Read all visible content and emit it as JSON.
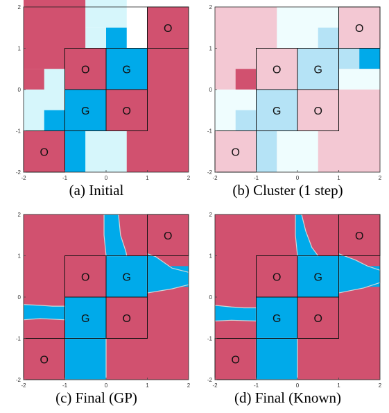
{
  "colors": {
    "obstacle": "#d1516f",
    "goal": "#00aaea",
    "light_blue": "#d6f6fb",
    "pale_pink": "#f3c8d3",
    "pale_blue": "#b5e3f6",
    "pale_cyan": "#effdfe",
    "grid_line": "#111111"
  },
  "chart_data": [
    {
      "type": "heatmap",
      "caption": "(a) Initial",
      "xlim": [
        -2,
        2
      ],
      "ylim": [
        -2,
        2
      ],
      "xticks": [
        "-2",
        "-1",
        "0",
        "1",
        "2"
      ],
      "yticks": [
        "-2",
        "-1",
        "0",
        "1",
        "2"
      ],
      "obstacles": [
        [
          -1.5,
          -1.5
        ],
        [
          -0.5,
          0.5
        ],
        [
          0.5,
          -0.5
        ],
        [
          1.5,
          1.5
        ]
      ],
      "goals": [
        [
          0.5,
          0.5
        ],
        [
          -0.5,
          -0.5
        ]
      ],
      "obstacle_label": "O",
      "goal_label": "G",
      "cells": [
        [
          -2,
          0.5,
          1.5,
          2,
          "obstacle"
        ],
        [
          -0.5,
          1.5,
          1,
          2,
          "light_blue"
        ],
        [
          -2,
          0.5,
          1.5,
          0.5,
          "obstacle"
        ],
        [
          -0.5,
          1.0,
          0.5,
          0.5,
          "light_blue"
        ],
        [
          0,
          1.0,
          0.5,
          0.5,
          "goal"
        ],
        [
          1.0,
          0.5,
          0.5,
          0.5,
          "goal"
        ],
        [
          1.5,
          0.5,
          0.5,
          1.0,
          "light_blue"
        ],
        [
          -2,
          0,
          1,
          0.5,
          "obstacle"
        ],
        [
          -1.5,
          0,
          0.5,
          0.5,
          "light_blue"
        ],
        [
          -1,
          0,
          3,
          1,
          "obstacle"
        ],
        [
          0,
          0,
          1,
          1,
          "goal"
        ],
        [
          -2,
          -1,
          1,
          1,
          "light_blue"
        ],
        [
          -1.5,
          -1,
          0.5,
          0.5,
          "goal"
        ],
        [
          -1,
          -1,
          1,
          1,
          "goal"
        ],
        [
          0,
          -1,
          2,
          1,
          "obstacle"
        ],
        [
          -2,
          -2,
          1,
          1,
          "obstacle"
        ],
        [
          -1,
          -2,
          0.5,
          1,
          "goal"
        ],
        [
          -0.5,
          -2,
          1,
          1,
          "light_blue"
        ],
        [
          0.5,
          -2,
          1.5,
          1,
          "obstacle"
        ],
        [
          1,
          1,
          1,
          1,
          "obstacle"
        ]
      ]
    },
    {
      "type": "heatmap",
      "caption": "(b) Cluster (1 step)",
      "xlim": [
        -2,
        2
      ],
      "ylim": [
        -2,
        2
      ],
      "xticks": [
        "-2",
        "-1",
        "0",
        "1",
        "2"
      ],
      "yticks": [
        "-2",
        "-1",
        "0",
        "1",
        "2"
      ],
      "obstacles": [
        [
          -1.5,
          -1.5
        ],
        [
          -0.5,
          0.5
        ],
        [
          0.5,
          -0.5
        ],
        [
          1.5,
          1.5
        ]
      ],
      "goals": [
        [
          0.5,
          0.5
        ],
        [
          -0.5,
          -0.5
        ]
      ],
      "obstacle_label": "O",
      "goal_label": "G",
      "cells": [
        [
          -2,
          -2,
          4,
          4,
          "pale_pink"
        ],
        [
          -0.5,
          1.0,
          1.5,
          1.0,
          "pale_cyan"
        ],
        [
          0.5,
          1.0,
          0.5,
          0.5,
          "pale_blue"
        ],
        [
          1.0,
          0.5,
          0.5,
          0.5,
          "pale_blue"
        ],
        [
          1.5,
          0.5,
          0.5,
          0.5,
          "goal"
        ],
        [
          1.0,
          0,
          1.0,
          0.5,
          "pale_cyan"
        ],
        [
          -1.5,
          0,
          0.5,
          0.5,
          "obstacle"
        ],
        [
          0,
          0,
          1,
          1,
          "pale_blue"
        ],
        [
          -2,
          -1,
          1,
          1,
          "pale_cyan"
        ],
        [
          -1.5,
          -1,
          0.5,
          0.5,
          "pale_blue"
        ],
        [
          -1,
          -1,
          1,
          1,
          "pale_blue"
        ],
        [
          -1,
          -2,
          0.5,
          1,
          "pale_blue"
        ],
        [
          -0.5,
          -2,
          1,
          1,
          "pale_cyan"
        ],
        [
          1,
          1,
          1,
          1,
          "pale_pink"
        ]
      ]
    },
    {
      "type": "heatmap",
      "caption": "(c) Final (GP)",
      "xlim": [
        -2,
        2
      ],
      "ylim": [
        -2,
        2
      ],
      "xticks": [
        "-2",
        "-1",
        "0",
        "1",
        "2"
      ],
      "yticks": [
        "-2",
        "-1",
        "0",
        "1",
        "2"
      ],
      "obstacles": [
        [
          -1.5,
          -1.5
        ],
        [
          -0.5,
          0.5
        ],
        [
          0.5,
          -0.5
        ],
        [
          1.5,
          1.5
        ]
      ],
      "goals": [
        [
          0.5,
          0.5
        ],
        [
          -0.5,
          -0.5
        ]
      ],
      "obstacle_label": "O",
      "goal_label": "G",
      "cells": [
        [
          -2,
          -2,
          4,
          4,
          "obstacle"
        ],
        [
          0,
          0,
          1,
          1,
          "goal"
        ],
        [
          -1,
          -1,
          1,
          1,
          "goal"
        ],
        [
          -1,
          -2,
          1,
          1,
          "goal"
        ],
        [
          -2,
          -0.5,
          1,
          0.25,
          "goal"
        ],
        [
          1,
          0.25,
          1,
          0.5,
          "goal"
        ]
      ],
      "regions": [
        [
          [
            -0.05,
            2
          ],
          [
            0.3,
            2
          ],
          [
            0.35,
            1.5
          ],
          [
            0.48,
            1.1
          ],
          [
            0.5,
            1
          ],
          [
            0,
            1
          ],
          [
            -0.05,
            1.5
          ]
        ],
        [
          [
            1,
            1.05
          ],
          [
            1.2,
            0.98
          ],
          [
            1.6,
            0.7
          ],
          [
            2,
            0.6
          ],
          [
            2,
            0.3
          ],
          [
            1.6,
            0.2
          ],
          [
            1,
            0.1
          ]
        ],
        [
          [
            -2,
            -0.18
          ],
          [
            -1.6,
            -0.2
          ],
          [
            -1.3,
            -0.22
          ],
          [
            -1,
            -0.22
          ],
          [
            -1,
            -0.55
          ],
          [
            -1.6,
            -0.52
          ],
          [
            -2,
            -0.55
          ]
        ],
        [
          [
            -1,
            -1
          ],
          [
            0,
            -1
          ],
          [
            0,
            -2
          ],
          [
            -1,
            -2
          ]
        ]
      ]
    },
    {
      "type": "heatmap",
      "caption": "(d) Final (Known)",
      "xlim": [
        -2,
        2
      ],
      "ylim": [
        -2,
        2
      ],
      "xticks": [
        "-2",
        "-1",
        "0",
        "1",
        "2"
      ],
      "yticks": [
        "-2",
        "-1",
        "0",
        "1",
        "2"
      ],
      "obstacles": [
        [
          -1.5,
          -1.5
        ],
        [
          -0.5,
          0.5
        ],
        [
          0.5,
          -0.5
        ],
        [
          1.5,
          1.5
        ]
      ],
      "goals": [
        [
          0.5,
          0.5
        ],
        [
          -0.5,
          -0.5
        ]
      ],
      "obstacle_label": "O",
      "goal_label": "G",
      "cells": [
        [
          -2,
          -2,
          4,
          4,
          "obstacle"
        ],
        [
          0,
          0,
          1,
          1,
          "goal"
        ],
        [
          -1,
          -1,
          1,
          1,
          "goal"
        ],
        [
          -1,
          -2,
          1,
          1,
          "goal"
        ],
        [
          -2,
          -0.5,
          1,
          0.25,
          "goal"
        ],
        [
          1,
          0.25,
          1,
          0.5,
          "goal"
        ]
      ],
      "regions": [
        [
          [
            -0.05,
            2
          ],
          [
            0.1,
            2
          ],
          [
            0.2,
            1.6
          ],
          [
            0.35,
            1.2
          ],
          [
            0.5,
            1
          ],
          [
            0,
            1
          ],
          [
            -0.05,
            1.5
          ]
        ],
        [
          [
            1,
            1.05
          ],
          [
            1.4,
            0.9
          ],
          [
            1.7,
            0.75
          ],
          [
            2,
            0.65
          ],
          [
            2,
            0.35
          ],
          [
            1.6,
            0.22
          ],
          [
            1,
            0.1
          ]
        ],
        [
          [
            -2,
            -0.2
          ],
          [
            -1.6,
            -0.24
          ],
          [
            -1.3,
            -0.26
          ],
          [
            -1,
            -0.26
          ],
          [
            -1,
            -0.58
          ],
          [
            -1.6,
            -0.56
          ],
          [
            -2,
            -0.58
          ]
        ],
        [
          [
            -1,
            -1
          ],
          [
            0,
            -1
          ],
          [
            0,
            -2
          ],
          [
            -1,
            -2
          ]
        ]
      ]
    }
  ]
}
